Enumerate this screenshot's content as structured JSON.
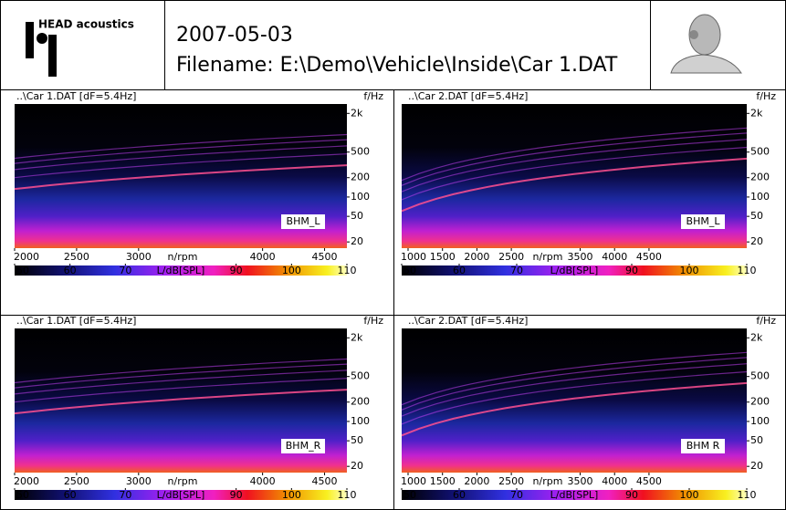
{
  "header": {
    "logo": "HEAD acoustics",
    "date": "2007-05-03",
    "filename": "Filename: E:\\Demo\\Vehicle\\Inside\\Car 1.DAT"
  },
  "chart_data": [
    {
      "type": "spectrogram",
      "title": "..\\Car 1.DAT [dF=5.4Hz]",
      "x_label": "n/rpm",
      "y_label": "f/Hz",
      "colorbar_label": "L/dB[SPL]",
      "channel": "BHM_L",
      "xlim": [
        2000,
        4680
      ],
      "xticks": [
        2000,
        2500,
        3000,
        4000,
        4500
      ],
      "ylim": [
        16,
        2800
      ],
      "log_y": true,
      "yticks": [
        {
          "value": 2000,
          "label": "2k"
        },
        500,
        200,
        100,
        50,
        20
      ],
      "clim": [
        50,
        110
      ],
      "cticks": [
        50,
        60,
        70,
        90,
        100,
        110
      ]
    },
    {
      "type": "spectrogram",
      "title": "..\\Car 2.DAT [dF=5.4Hz]",
      "x_label": "n/rpm",
      "y_label": "f/Hz",
      "colorbar_label": "L/dB[SPL]",
      "channel": "BHM_L",
      "xlim": [
        907,
        5920
      ],
      "xticks": [
        1000,
        1500,
        2000,
        2500,
        3500,
        4000,
        4500
      ],
      "ylim": [
        16,
        2800
      ],
      "log_y": true,
      "yticks": [
        {
          "value": 2000,
          "label": "2k"
        },
        500,
        200,
        100,
        50,
        20
      ],
      "clim": [
        50,
        110
      ],
      "cticks": [
        50,
        60,
        70,
        90,
        100,
        110
      ]
    },
    {
      "type": "spectrogram",
      "title": "..\\Car 1.DAT [dF=5.4Hz]",
      "x_label": "n/rpm",
      "y_label": "f/Hz",
      "colorbar_label": "L/dB[SPL]",
      "channel": "BHM_R",
      "xlim": [
        2000,
        4680
      ],
      "xticks": [
        2000,
        2500,
        3000,
        4000,
        4500
      ],
      "ylim": [
        16,
        2800
      ],
      "log_y": true,
      "yticks": [
        {
          "value": 2000,
          "label": "2k"
        },
        500,
        200,
        100,
        50,
        20
      ],
      "clim": [
        50,
        110
      ],
      "cticks": [
        50,
        60,
        70,
        90,
        100,
        110
      ]
    },
    {
      "type": "spectrogram",
      "title": "..\\Car 2.DAT [dF=5.4Hz]",
      "x_label": "n/rpm",
      "y_label": "f/Hz",
      "colorbar_label": "L/dB[SPL]",
      "channel": "BHM R",
      "xlim": [
        907,
        5920
      ],
      "xticks": [
        1000,
        1500,
        2000,
        2500,
        3500,
        4000,
        4500
      ],
      "ylim": [
        16,
        2800
      ],
      "log_y": true,
      "yticks": [
        {
          "value": 2000,
          "label": "2k"
        },
        500,
        200,
        100,
        50,
        20
      ],
      "clim": [
        50,
        110
      ],
      "cticks": [
        50,
        60,
        70,
        90,
        100,
        110
      ]
    }
  ]
}
